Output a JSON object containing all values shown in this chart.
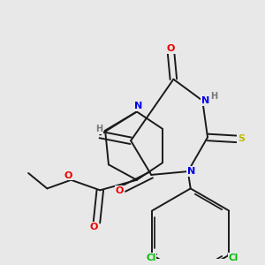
{
  "background_color": "#e8e8e8",
  "figsize": [
    3.0,
    3.0
  ],
  "dpi": 100,
  "atom_colors": {
    "C": "#1a1a1a",
    "N": "#0000ee",
    "O": "#ee0000",
    "S": "#bbbb00",
    "Cl": "#00bb00",
    "H": "#777777"
  },
  "bond_color": "#1a1a1a",
  "bond_width": 1.4
}
